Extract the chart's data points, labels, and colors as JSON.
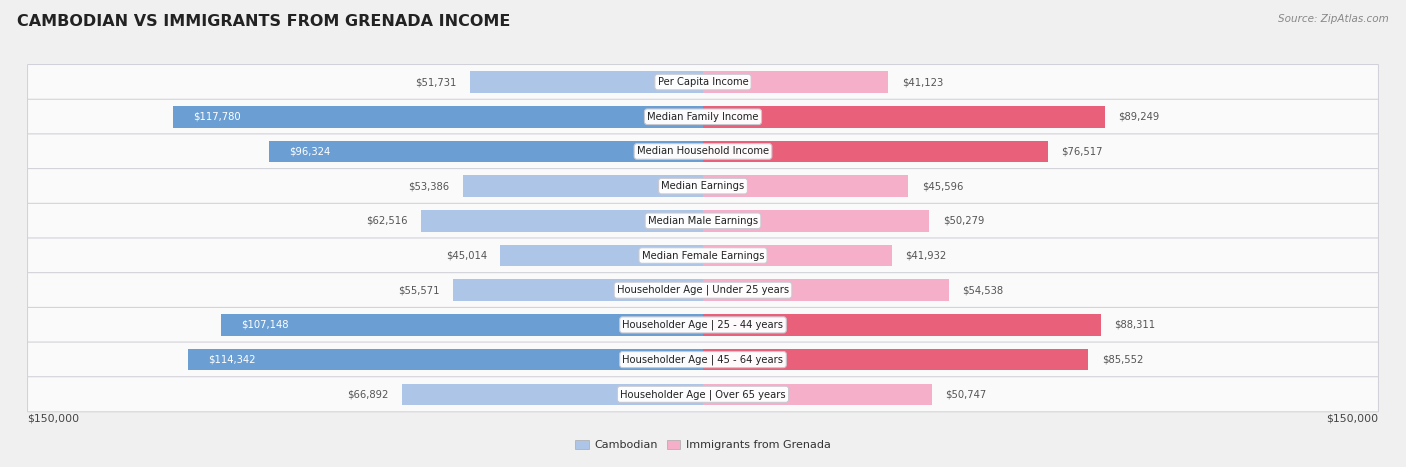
{
  "title": "CAMBODIAN VS IMMIGRANTS FROM GRENADA INCOME",
  "source": "Source: ZipAtlas.com",
  "categories": [
    "Per Capita Income",
    "Median Family Income",
    "Median Household Income",
    "Median Earnings",
    "Median Male Earnings",
    "Median Female Earnings",
    "Householder Age | Under 25 years",
    "Householder Age | 25 - 44 years",
    "Householder Age | 45 - 64 years",
    "Householder Age | Over 65 years"
  ],
  "cambodian_values": [
    51731,
    117780,
    96324,
    53386,
    62516,
    45014,
    55571,
    107148,
    114342,
    66892
  ],
  "grenada_values": [
    41123,
    89249,
    76517,
    45596,
    50279,
    41932,
    54538,
    88311,
    85552,
    50747
  ],
  "cambodian_labels": [
    "$51,731",
    "$117,780",
    "$96,324",
    "$53,386",
    "$62,516",
    "$45,014",
    "$55,571",
    "$107,148",
    "$114,342",
    "$66,892"
  ],
  "grenada_labels": [
    "$41,123",
    "$89,249",
    "$76,517",
    "$45,596",
    "$50,279",
    "$41,932",
    "$54,538",
    "$88,311",
    "$85,552",
    "$50,747"
  ],
  "max_value": 150000,
  "cambodian_color_light": "#adc6e8",
  "cambodian_color_dark": "#6b9fd4",
  "grenada_color_light": "#f5afc8",
  "grenada_color_dark": "#e8607a",
  "background_color": "#f0f0f0",
  "row_bg_color": "#fafafa",
  "row_border_color": "#d0d0d8",
  "label_dark_text": "white",
  "label_light_text": "#555555",
  "legend_cambodian": "Cambodian",
  "legend_grenada": "Immigrants from Grenada",
  "x_tick_left": "$150,000",
  "x_tick_right": "$150,000",
  "cam_dark_threshold": 90000,
  "gren_dark_threshold": 75000
}
